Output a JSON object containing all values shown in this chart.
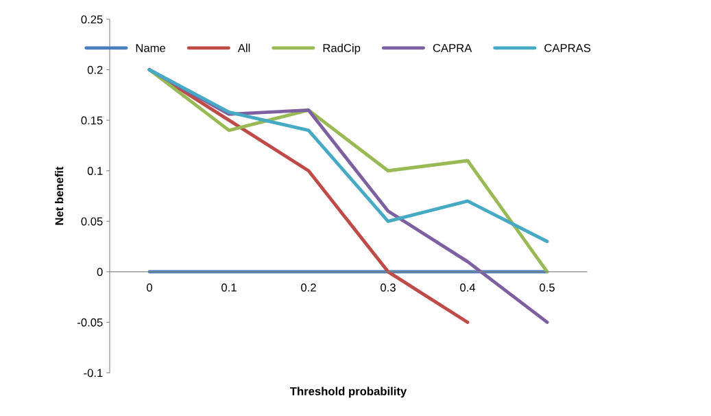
{
  "chart_data": {
    "type": "line",
    "xlabel": "Threshold probability",
    "ylabel": "Net benefit",
    "categories": [
      "0",
      "0.1",
      "0.2",
      "0.3",
      "0.4",
      "0.5"
    ],
    "series": [
      {
        "name": "Name",
        "color": "#4a7ebb",
        "values": [
          0,
          0,
          0,
          0,
          0,
          0
        ]
      },
      {
        "name": "All",
        "color": "#be4b48",
        "values": [
          0.2,
          0.15,
          0.1,
          0,
          -0.05,
          null
        ]
      },
      {
        "name": "RadCip",
        "color": "#98b954",
        "values": [
          0.2,
          0.14,
          0.16,
          0.1,
          0.11,
          0
        ]
      },
      {
        "name": "CAPRA",
        "color": "#7d60a0",
        "values": [
          0.2,
          0.156,
          0.16,
          0.06,
          0.01,
          -0.05
        ]
      },
      {
        "name": "CAPRAS",
        "color": "#46aac5",
        "values": [
          0.2,
          0.158,
          0.14,
          0.05,
          0.07,
          0.03
        ]
      }
    ],
    "ylim": [
      -0.1,
      0.25
    ],
    "yticks": [
      -0.1,
      -0.05,
      0,
      0.05,
      0.1,
      0.15,
      0.2,
      0.25
    ],
    "grid": false,
    "legend": "top right",
    "marker": "none",
    "line_style": "solid"
  }
}
